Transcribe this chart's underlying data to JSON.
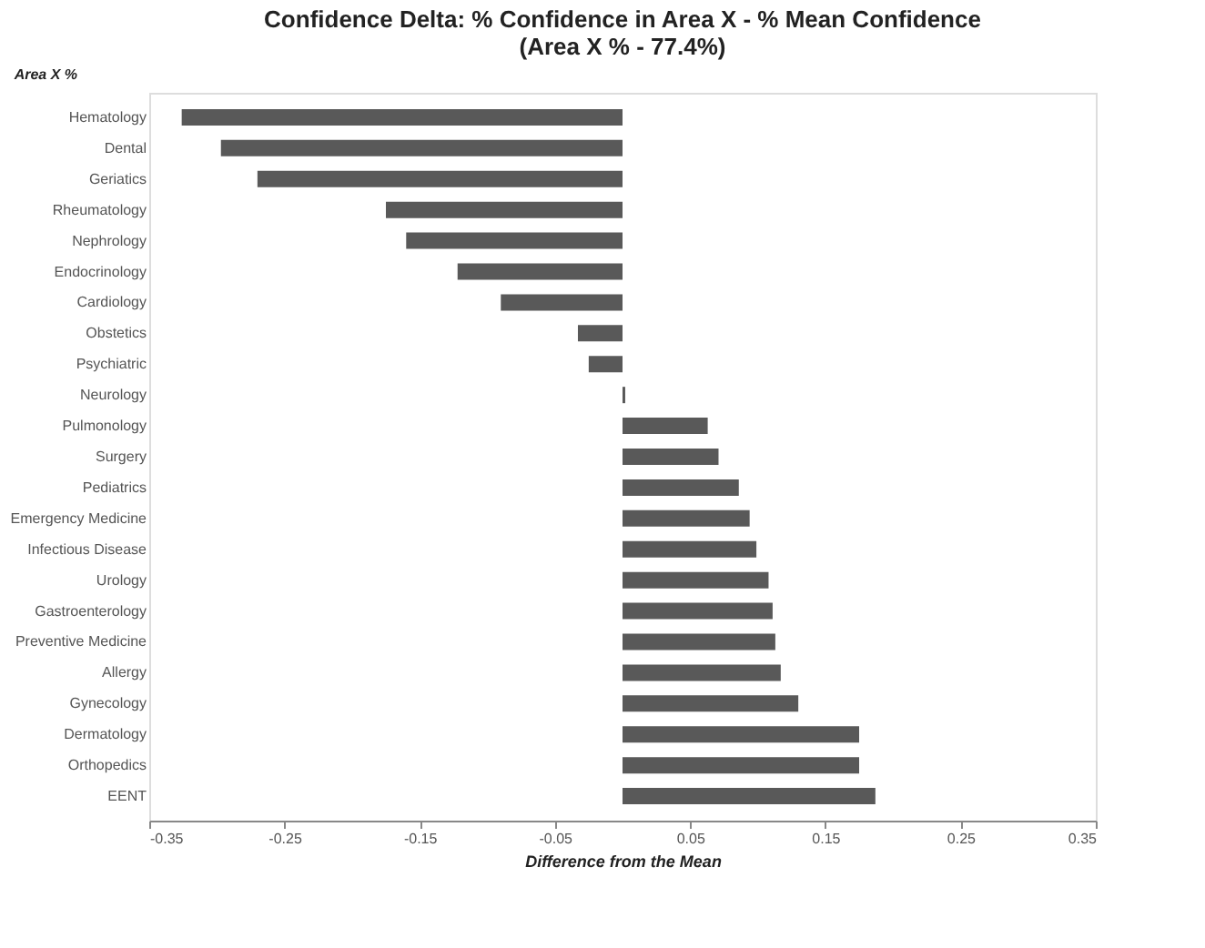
{
  "chart_data": {
    "type": "bar",
    "orientation": "horizontal",
    "title": "Confidence Delta:   % Confidence in Area X - % Mean Confidence\n(Area X % - 77.4%)",
    "ylabel": "Area X %",
    "xlabel": "Difference from the Mean",
    "categories": [
      "Hematology",
      "Dental",
      "Geriatics",
      "Rheumatology",
      "Nephrology",
      "Endocrinology",
      "Cardiology",
      "Obstetics",
      "Psychiatric",
      "Neurology",
      "Pulmonology",
      "Surgery",
      "Pediatrics",
      "Emergency Medicine",
      "Infectious Disease",
      "Urology",
      "Gastroenterology",
      "Preventive Medicine",
      "Allergy",
      "Gynecology",
      "Dermatology",
      "Orthopedics",
      "EENT"
    ],
    "values": [
      -0.326,
      -0.297,
      -0.27,
      -0.175,
      -0.16,
      -0.122,
      -0.09,
      -0.033,
      -0.025,
      0.002,
      0.063,
      0.071,
      0.086,
      0.094,
      0.099,
      0.108,
      0.111,
      0.113,
      0.117,
      0.13,
      0.175,
      0.175,
      0.187
    ],
    "color": "#595959",
    "xlim": [
      -0.35,
      0.35
    ],
    "xticks": [
      -0.35,
      -0.25,
      -0.15,
      -0.05,
      0.05,
      0.15,
      0.25,
      0.35
    ],
    "grid": false
  }
}
